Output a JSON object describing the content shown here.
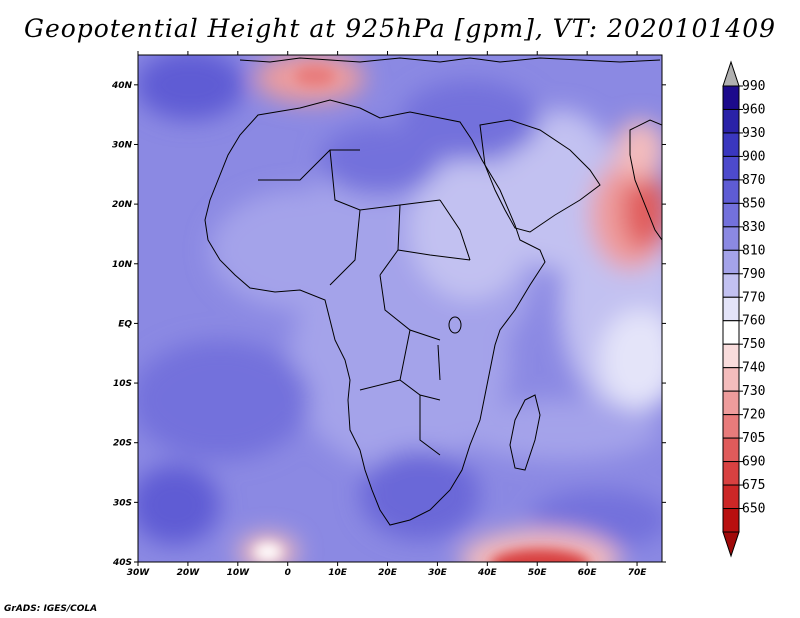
{
  "title": "Geopotential Height at 925hPa [gpm], VT: 2020101409",
  "credit": "GrADS: IGES/COLA",
  "map": {
    "lat_labels": [
      "40N",
      "30N",
      "20N",
      "10N",
      "EQ",
      "10S",
      "20S",
      "30S",
      "40S"
    ],
    "lon_labels": [
      "30W",
      "20W",
      "10W",
      "0",
      "10E",
      "20E",
      "30E",
      "40E",
      "50E",
      "60E",
      "70E"
    ],
    "lon_range": [
      -30,
      75
    ],
    "lat_range": [
      -40,
      45
    ],
    "lat_ticks": [
      40,
      30,
      20,
      10,
      0,
      -10,
      -20,
      -30,
      -40
    ],
    "lon_ticks": [
      -30,
      -20,
      -10,
      0,
      10,
      20,
      30,
      40,
      50,
      60,
      70
    ],
    "land_outline": "black"
  },
  "colorbar": {
    "levels": [
      "990",
      "960",
      "930",
      "900",
      "870",
      "850",
      "830",
      "810",
      "790",
      "770",
      "760",
      "750",
      "740",
      "730",
      "720",
      "705",
      "690",
      "675",
      "650"
    ],
    "colors": [
      "#1c0a8c",
      "#2a22a8",
      "#3a37bf",
      "#4d4acc",
      "#5e5cd4",
      "#7371dc",
      "#8b89e3",
      "#a4a3ea",
      "#c2c1f1",
      "#e4e4f9",
      "#ffffff",
      "#f9dcdc",
      "#f4bcbc",
      "#ee9c9c",
      "#e87b7b",
      "#e05b5b",
      "#d84141",
      "#cc2727",
      "#b81010"
    ],
    "top_arrow_color": "#b0b0b0",
    "bottom_arrow_color": "#a00a0a"
  }
}
